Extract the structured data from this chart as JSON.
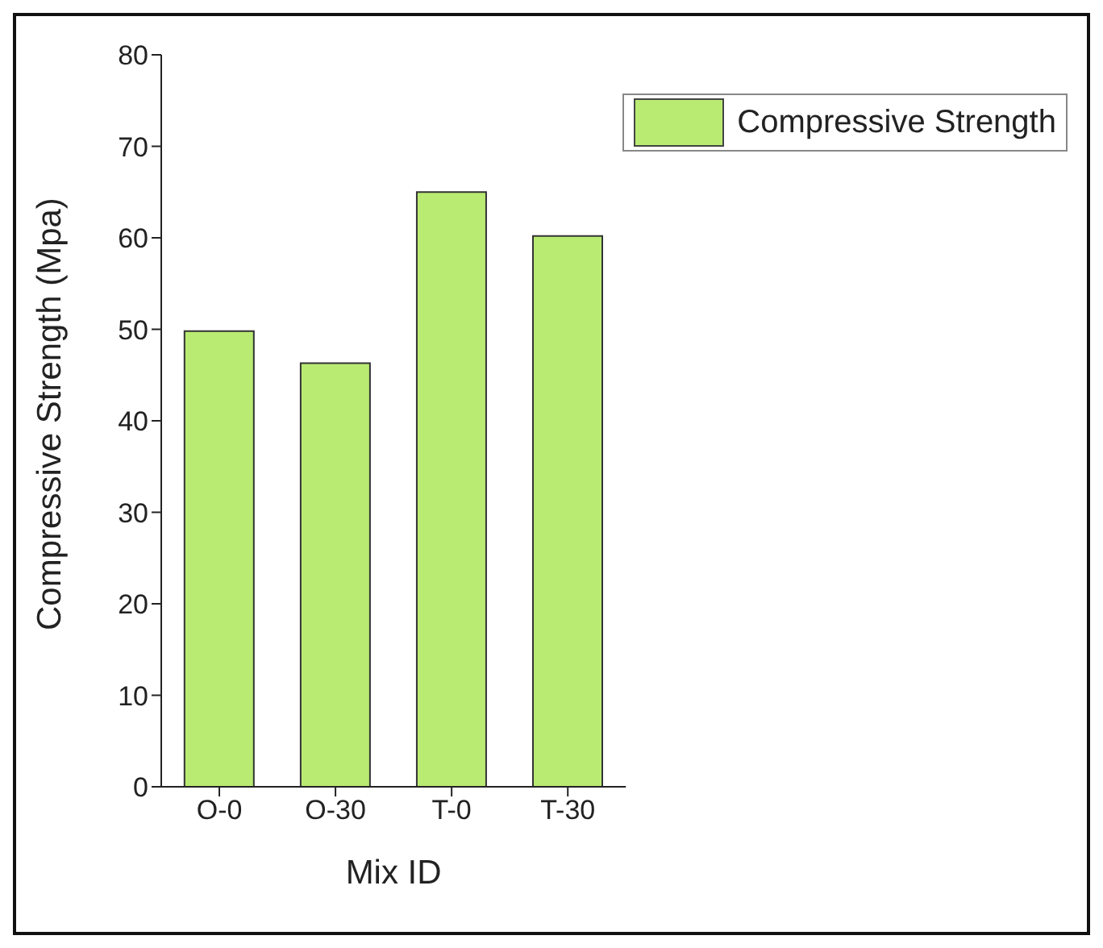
{
  "chart_data": {
    "type": "bar",
    "xlabel": "Mix ID",
    "ylabel": "Compressive Strength (Mpa)",
    "categories": [
      "O-0",
      "O-30",
      "T-0",
      "T-30"
    ],
    "series": [
      {
        "name": "Compressive Strength",
        "color": "#b9eb73",
        "values": [
          49.8,
          46.3,
          65.0,
          60.2
        ]
      }
    ],
    "ylim": [
      0,
      80
    ],
    "yticks": [
      0,
      10,
      20,
      30,
      40,
      50,
      60,
      70,
      80
    ],
    "grid": false,
    "legend": "top right"
  }
}
